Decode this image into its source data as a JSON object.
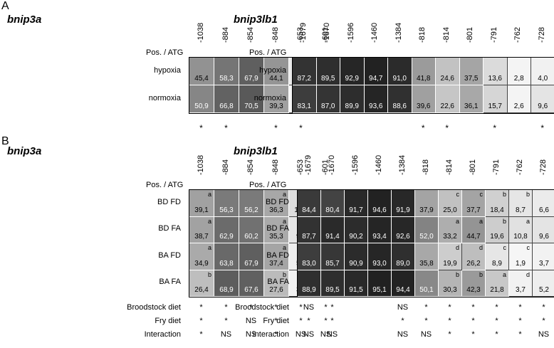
{
  "panels": [
    {
      "letter": "A",
      "genes": [
        {
          "name": "bnip3a",
          "pos_label": "Pos. / ATG",
          "positions": [
            "-1038",
            "-884",
            "-854",
            "-848",
            "-653",
            "-601"
          ],
          "rows": [
            {
              "label": "hypoxia",
              "values": [
                "45,4",
                "58,3",
                "67,9",
                "44,1",
                "6,8",
                "1,1"
              ],
              "letters": [
                "",
                "",
                "",
                "",
                "",
                ""
              ]
            },
            {
              "label": "normoxia",
              "values": [
                "50,9",
                "66,8",
                "70,5",
                "39,3",
                "1,3",
                "1,0"
              ],
              "letters": [
                "",
                "",
                "",
                "",
                "",
                ""
              ]
            }
          ],
          "significance": [
            "*",
            "*",
            "",
            "*",
            "*",
            ""
          ]
        },
        {
          "name": "bnip3lb1",
          "pos_label": "Pos. / ATG",
          "positions": [
            "-1679",
            "-1670",
            "-1596",
            "-1460",
            "-1384",
            "-818",
            "-814",
            "-801",
            "-791",
            "-762",
            "-728"
          ],
          "rows": [
            {
              "label": "hypoxia",
              "values": [
                "87,2",
                "89,5",
                "92,9",
                "94,7",
                "91,0",
                "41,8",
                "24,6",
                "37,5",
                "13,6",
                "2,8",
                "4,0"
              ],
              "letters": [
                "",
                "",
                "",
                "",
                "",
                "",
                "",
                "",
                "",
                "",
                ""
              ]
            },
            {
              "label": "normoxia",
              "values": [
                "83,1",
                "87,0",
                "89,9",
                "93,6",
                "88,6",
                "39,6",
                "22,6",
                "36,1",
                "15,7",
                "2,6",
                "9,6"
              ],
              "letters": [
                "",
                "",
                "",
                "",
                "",
                "",
                "",
                "",
                "",
                "",
                ""
              ]
            }
          ],
          "significance": [
            "",
            "",
            "",
            "",
            "",
            "*",
            "*",
            "",
            "*",
            "",
            "*"
          ]
        }
      ]
    },
    {
      "letter": "B",
      "genes": [
        {
          "name": "bnip3a",
          "pos_label": "Pos. / ATG",
          "positions": [
            "-1038",
            "-884",
            "-854",
            "-848",
            "-653",
            "-601"
          ],
          "rows": [
            {
              "label": "BD FD",
              "values": [
                "39,1",
                "56,3",
                "56,2",
                "36,3",
                "12,6",
                "2,6"
              ],
              "letters": [
                "a",
                "",
                "",
                "a",
                "",
                ""
              ]
            },
            {
              "label": "BD FA",
              "values": [
                "38,7",
                "62,9",
                "60,2",
                "35,3",
                "9,4",
                "1,3"
              ],
              "letters": [
                "a",
                "",
                "",
                "a",
                "",
                ""
              ]
            },
            {
              "label": "BA FD",
              "values": [
                "34,9",
                "63,8",
                "67,9",
                "37,4",
                "5,9",
                "1,2"
              ],
              "letters": [
                "a",
                "",
                "",
                "a",
                "",
                ""
              ]
            },
            {
              "label": "BA FA",
              "values": [
                "26,4",
                "68,9",
                "67,6",
                "27,6",
                "3,8",
                "1,2"
              ],
              "letters": [
                "b",
                "",
                "",
                "b",
                "",
                ""
              ]
            }
          ],
          "stats": [
            {
              "label": "Broodstock diet",
              "values": [
                "*",
                "*",
                "*",
                "*",
                "*",
                "*"
              ]
            },
            {
              "label": "Fry diet",
              "values": [
                "*",
                "*",
                "NS",
                "*",
                "*",
                "*"
              ]
            },
            {
              "label": "Interaction",
              "values": [
                "*",
                "NS",
                "NS",
                "*",
                "NS",
                "NS"
              ]
            }
          ]
        },
        {
          "name": "bnip3lb1",
          "pos_label": "Pos. / ATG",
          "positions": [
            "-1679",
            "-1670",
            "-1596",
            "-1460",
            "-1384",
            "-818",
            "-814",
            "-801",
            "-791",
            "-762",
            "-728"
          ],
          "rows": [
            {
              "label": "BD FD",
              "values": [
                "84,4",
                "80,4",
                "91,7",
                "94,6",
                "91,9",
                "37,9",
                "25,0",
                "37,7",
                "18,4",
                "8,7",
                "6,6"
              ],
              "letters": [
                "",
                "",
                "",
                "",
                "",
                "",
                "c",
                "c",
                "b",
                "b",
                ""
              ]
            },
            {
              "label": "BD FA",
              "values": [
                "87,7",
                "91,4",
                "90,2",
                "93,4",
                "92,6",
                "52,0",
                "33,2",
                "44,7",
                "19,6",
                "10,8",
                "9,6"
              ],
              "letters": [
                "",
                "",
                "",
                "",
                "",
                "",
                "a",
                "a",
                "b",
                "a",
                ""
              ]
            },
            {
              "label": "BA FD",
              "values": [
                "83,0",
                "85,7",
                "90,9",
                "93,0",
                "89,0",
                "35,8",
                "19,9",
                "26,2",
                "8,9",
                "1,9",
                "3,7"
              ],
              "letters": [
                "",
                "",
                "",
                "",
                "",
                "",
                "d",
                "d",
                "c",
                "c",
                ""
              ]
            },
            {
              "label": "BA FA",
              "values": [
                "88,9",
                "89,5",
                "91,5",
                "95,1",
                "94,4",
                "50,1",
                "30,3",
                "42,3",
                "21,8",
                "3,7",
                "5,2"
              ],
              "letters": [
                "",
                "",
                "",
                "",
                "",
                "",
                "b",
                "b",
                "a",
                "d",
                ""
              ]
            }
          ],
          "stats": [
            {
              "label": "Broodstock diet",
              "values": [
                "NS",
                "*",
                "",
                "",
                "NS",
                "*",
                "*",
                "*",
                "*",
                "*",
                "*"
              ]
            },
            {
              "label": "Fry diet",
              "values": [
                "*",
                "*",
                "",
                "",
                "*",
                "*",
                "*",
                "*",
                "*",
                "*",
                "*"
              ]
            },
            {
              "label": "interaction",
              "values": [
                "NS",
                "NS",
                "",
                "",
                "NS",
                "NS",
                "*",
                "*",
                "*",
                "*",
                "NS"
              ]
            }
          ]
        }
      ]
    }
  ]
}
